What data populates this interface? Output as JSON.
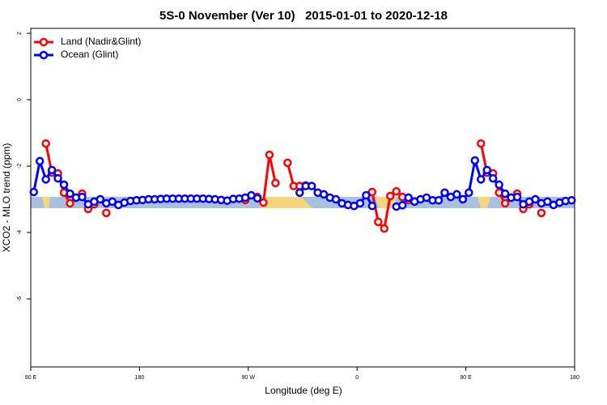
{
  "chart_data": {
    "type": "line",
    "title": "5S-0 November (Ver 10)   2015-01-01 to 2020-12-18",
    "xlabel": "Longitude (deg E)",
    "ylabel": "XCO2 - MLO trend (ppm)",
    "x": [
      92.5,
      97.5,
      102.5,
      107.5,
      112.5,
      117.5,
      122.5,
      127.5,
      132.5,
      137.5,
      142.5,
      147.5,
      152.5,
      157.5,
      162.5,
      167.5,
      172.5,
      177.5,
      182.5,
      187.5,
      192.5,
      197.5,
      202.5,
      207.5,
      212.5,
      217.5,
      222.5,
      227.5,
      232.5,
      237.5,
      242.5,
      247.5,
      252.5,
      257.5,
      262.5,
      267.5,
      272.5,
      277.5,
      282.5,
      287.5,
      292.5,
      297.5,
      302.5,
      307.5,
      312.5,
      317.5,
      322.5,
      327.5,
      332.5,
      337.5,
      342.5,
      347.5,
      352.5,
      357.5,
      362.5,
      367.5,
      372.5,
      377.5,
      382.5,
      387.5,
      392.5,
      397.5,
      402.5,
      407.5,
      412.5,
      417.5,
      422.5,
      427.5,
      432.5,
      437.5,
      442.5,
      447.5,
      452.5,
      457.5,
      462.5,
      467.5,
      472.5,
      477.5,
      482.5,
      487.5,
      492.5,
      497.5,
      502.5,
      507.5,
      512.5,
      517.5,
      522.5,
      527.5,
      532.5,
      537.5
    ],
    "series": [
      {
        "name": "Land (Nadir&Glint)",
        "color": "#ff0000",
        "values": [
          null,
          null,
          -1.32,
          -2.2,
          -2.22,
          -2.8,
          -3.12,
          -2.95,
          -2.83,
          -3.29,
          -3.15,
          null,
          -3.41,
          null,
          null,
          null,
          null,
          null,
          null,
          null,
          null,
          null,
          null,
          null,
          null,
          null,
          null,
          null,
          null,
          null,
          null,
          null,
          null,
          null,
          null,
          -3.02,
          null,
          -2.93,
          -3.1,
          -1.66,
          -2.51,
          null,
          -1.9,
          -2.6,
          -2.6,
          -2.58,
          null,
          null,
          null,
          null,
          null,
          null,
          null,
          null,
          null,
          null,
          -2.78,
          -3.68,
          -3.88,
          -2.9,
          -2.76,
          -2.93,
          -3.02,
          null,
          null,
          null,
          null,
          null,
          null,
          null,
          null,
          null,
          null,
          null,
          -1.32,
          -2.2,
          -2.22,
          -2.8,
          -3.12,
          -2.95,
          -2.83,
          -3.29,
          -3.15,
          null,
          -3.41,
          null,
          null,
          null,
          null,
          null
        ]
      },
      {
        "name": "Ocean (Glint)",
        "color": "#0000ff",
        "values": [
          -2.78,
          -1.85,
          -2.4,
          -2.12,
          -2.37,
          -2.56,
          -2.83,
          -2.95,
          -2.93,
          -3.15,
          -3.07,
          -3.0,
          -3.12,
          -3.07,
          -3.17,
          -3.1,
          -3.05,
          -3.03,
          -3.02,
          -3.0,
          -3.0,
          -2.99,
          -2.98,
          -2.98,
          -2.98,
          -2.98,
          -2.98,
          -2.98,
          -2.98,
          -2.99,
          -3.0,
          -3.02,
          -3.04,
          -2.99,
          -2.98,
          -2.95,
          -2.88,
          -2.97,
          null,
          null,
          null,
          null,
          null,
          null,
          -2.8,
          -2.6,
          -2.6,
          -2.8,
          -2.85,
          -2.95,
          -3.0,
          -3.12,
          -3.17,
          -3.2,
          -3.12,
          -2.88,
          -3.2,
          null,
          null,
          null,
          -3.22,
          -3.18,
          -2.95,
          -3.07,
          -3.0,
          -2.95,
          -3.03,
          -3.03,
          -2.8,
          -2.93,
          -2.85,
          -3.0,
          -2.8,
          -1.83,
          -2.4,
          -2.12,
          -2.37,
          -2.56,
          -2.83,
          -2.95,
          -2.93,
          -3.15,
          -3.07,
          -3.0,
          -3.12,
          -3.07,
          -3.17,
          -3.1,
          -3.05,
          -3.03
        ]
      }
    ],
    "xlim": [
      90,
      540
    ],
    "xticks": [
      {
        "value": 90,
        "label": "90 E"
      },
      180,
      {
        "value": 270,
        "label": "90 W"
      },
      {
        "value": 360,
        "label": "0"
      },
      {
        "value": 450,
        "label": "90 E"
      },
      180
    ],
    "ylim": [
      -8.05,
      2.15
    ],
    "yticks": [
      2,
      0,
      -2,
      -4,
      -6
    ],
    "legend": "top-left"
  }
}
